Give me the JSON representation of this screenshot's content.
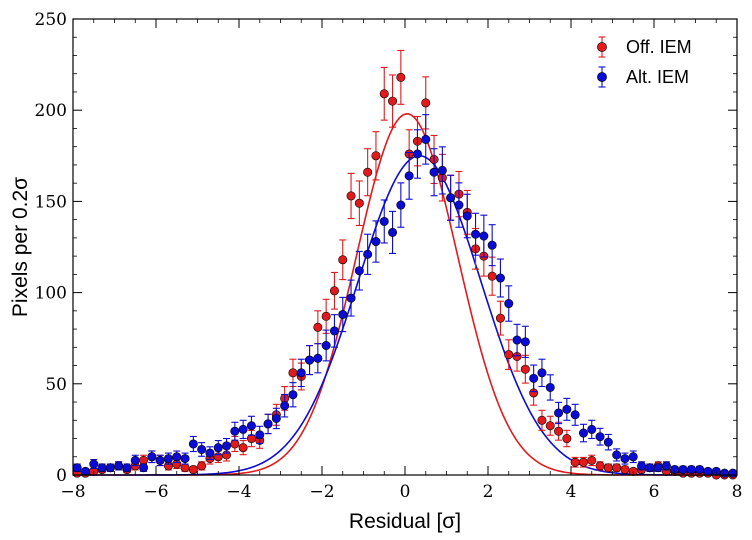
{
  "chart_data": {
    "type": "scatter",
    "title": "",
    "xlabel": "Residual [σ]",
    "ylabel": "Pixels per 0.2σ",
    "xlim": [
      -8,
      8
    ],
    "ylim": [
      0,
      250
    ],
    "xticks": [
      -8,
      -6,
      -4,
      -2,
      0,
      2,
      4,
      6,
      8
    ],
    "yticks": [
      0,
      50,
      100,
      150,
      200,
      250
    ],
    "xtick_labels": [
      "−8",
      "−6",
      "−4",
      "−2",
      "0",
      "2",
      "4",
      "6",
      "8"
    ],
    "ytick_labels": [
      "0",
      "50",
      "100",
      "150",
      "200",
      "250"
    ],
    "grid": false,
    "legend_position": "top-right",
    "series": [
      {
        "name": "Off. IEM",
        "color": "#e31a1c",
        "fit": {
          "amplitude": 198,
          "mean": 0.05,
          "sigma": 1.22
        },
        "x": [
          -7.9,
          -7.7,
          -7.5,
          -7.3,
          -7.1,
          -6.9,
          -6.7,
          -6.5,
          -6.3,
          -6.1,
          -5.9,
          -5.7,
          -5.5,
          -5.3,
          -5.1,
          -4.9,
          -4.7,
          -4.5,
          -4.3,
          -4.1,
          -3.9,
          -3.7,
          -3.5,
          -3.3,
          -3.1,
          -2.9,
          -2.7,
          -2.5,
          -2.3,
          -2.1,
          -1.9,
          -1.7,
          -1.5,
          -1.3,
          -1.1,
          -0.9,
          -0.7,
          -0.5,
          -0.3,
          -0.1,
          0.1,
          0.3,
          0.5,
          0.7,
          0.9,
          1.1,
          1.3,
          1.5,
          1.7,
          1.9,
          2.1,
          2.3,
          2.5,
          2.7,
          2.9,
          3.1,
          3.3,
          3.5,
          3.7,
          3.9,
          4.1,
          4.3,
          4.5,
          4.7,
          4.9,
          5.1,
          5.3,
          5.5,
          5.7,
          5.9,
          6.1,
          6.3,
          6.5,
          6.7,
          6.9,
          7.1,
          7.3,
          7.5,
          7.7,
          7.9
        ],
        "y": [
          1,
          1,
          2,
          3,
          4,
          5,
          3,
          5,
          8,
          10,
          8,
          5,
          6,
          4,
          3,
          5,
          9,
          10,
          11,
          17,
          15,
          20,
          19,
          28,
          33,
          42,
          56,
          54,
          63,
          81,
          87,
          101,
          118,
          153,
          149,
          166,
          175,
          209,
          205,
          218,
          176,
          183,
          204,
          173,
          163,
          152,
          154,
          144,
          124,
          120,
          109,
          86,
          66,
          65,
          58,
          45,
          30,
          27,
          24,
          20,
          7,
          7,
          8,
          5,
          4,
          4,
          3,
          2,
          3,
          4,
          5,
          2,
          2,
          1,
          1,
          1,
          1,
          0,
          0,
          0
        ]
      },
      {
        "name": "Alt. IEM",
        "color": "#0b0bd6",
        "fit": {
          "amplitude": 175,
          "mean": 0.35,
          "sigma": 1.48
        },
        "x": [
          -7.9,
          -7.7,
          -7.5,
          -7.3,
          -7.1,
          -6.9,
          -6.7,
          -6.5,
          -6.3,
          -6.1,
          -5.9,
          -5.7,
          -5.5,
          -5.3,
          -5.1,
          -4.9,
          -4.7,
          -4.5,
          -4.3,
          -4.1,
          -3.9,
          -3.7,
          -3.5,
          -3.3,
          -3.1,
          -2.9,
          -2.7,
          -2.5,
          -2.3,
          -2.1,
          -1.9,
          -1.7,
          -1.5,
          -1.3,
          -1.1,
          -0.9,
          -0.7,
          -0.5,
          -0.3,
          -0.1,
          0.1,
          0.3,
          0.5,
          0.7,
          0.9,
          1.1,
          1.3,
          1.5,
          1.7,
          1.9,
          2.1,
          2.3,
          2.5,
          2.7,
          2.9,
          3.1,
          3.3,
          3.5,
          3.7,
          3.9,
          4.1,
          4.3,
          4.5,
          4.7,
          4.9,
          5.1,
          5.3,
          5.5,
          5.7,
          5.9,
          6.1,
          6.3,
          6.5,
          6.7,
          6.9,
          7.1,
          7.3,
          7.5,
          7.7,
          7.9
        ],
        "y": [
          4,
          2,
          6,
          4,
          4,
          5,
          4,
          8,
          4,
          10,
          8,
          9,
          10,
          9,
          17,
          14,
          12,
          15,
          16,
          24,
          25,
          27,
          22,
          28,
          31,
          38,
          44,
          56,
          63,
          64,
          71,
          79,
          88,
          97,
          112,
          121,
          128,
          139,
          133,
          148,
          164,
          176,
          184,
          166,
          167,
          152,
          148,
          142,
          132,
          131,
          126,
          108,
          94,
          74,
          73,
          53,
          56,
          48,
          34,
          36,
          33,
          23,
          25,
          21,
          18,
          11,
          9,
          10,
          5,
          4,
          4,
          5,
          3,
          3,
          3,
          3,
          2,
          2,
          1,
          1
        ]
      }
    ]
  }
}
